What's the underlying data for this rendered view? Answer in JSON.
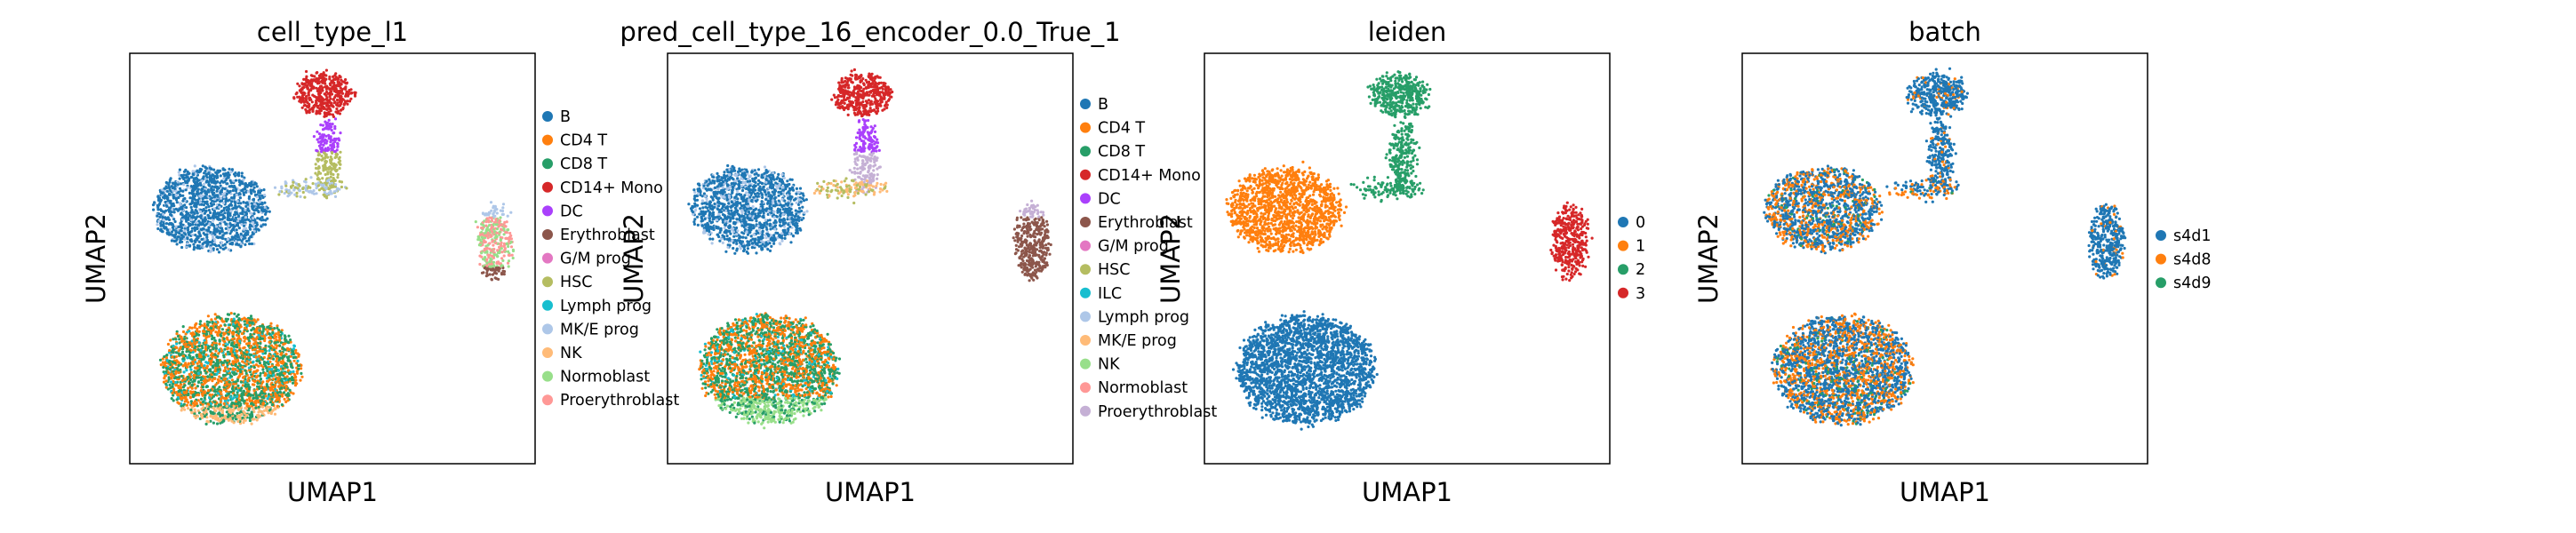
{
  "figure": {
    "background": "#ffffff"
  },
  "chart_data": [
    {
      "type": "scatter",
      "title": "cell_type_l1",
      "xlabel": "UMAP1",
      "ylabel": "UMAP2",
      "grid": false,
      "legend_placement": "right",
      "legend": [
        {
          "label": "B",
          "color": "#1f77b4"
        },
        {
          "label": "CD4 T",
          "color": "#ff7f0e"
        },
        {
          "label": "CD8 T",
          "color": "#279e68"
        },
        {
          "label": "CD14+ Mono",
          "color": "#d62728"
        },
        {
          "label": "DC",
          "color": "#aa40fc"
        },
        {
          "label": "Erythroblast",
          "color": "#8c564b"
        },
        {
          "label": "G/M prog",
          "color": "#e377c2"
        },
        {
          "label": "HSC",
          "color": "#b5bd61"
        },
        {
          "label": "Lymph prog",
          "color": "#17becf"
        },
        {
          "label": "MK/E prog",
          "color": "#aec7e8"
        },
        {
          "label": "NK",
          "color": "#ffbb78"
        },
        {
          "label": "Normoblast",
          "color": "#98df8a"
        },
        {
          "label": "Proerythroblast",
          "color": "#ff9896"
        }
      ]
    },
    {
      "type": "scatter",
      "title": "pred_cell_type_16_encoder_0.0_True_1",
      "xlabel": "UMAP1",
      "ylabel": "UMAP2",
      "grid": false,
      "legend_placement": "right",
      "legend": [
        {
          "label": "B",
          "color": "#1f77b4"
        },
        {
          "label": "CD4 T",
          "color": "#ff7f0e"
        },
        {
          "label": "CD8 T",
          "color": "#279e68"
        },
        {
          "label": "CD14+ Mono",
          "color": "#d62728"
        },
        {
          "label": "DC",
          "color": "#aa40fc"
        },
        {
          "label": "Erythroblast",
          "color": "#8c564b"
        },
        {
          "label": "G/M prog",
          "color": "#e377c2"
        },
        {
          "label": "HSC",
          "color": "#b5bd61"
        },
        {
          "label": "ILC",
          "color": "#17becf"
        },
        {
          "label": "Lymph prog",
          "color": "#aec7e8"
        },
        {
          "label": "MK/E prog",
          "color": "#ffbb78"
        },
        {
          "label": "NK",
          "color": "#98df8a"
        },
        {
          "label": "Normoblast",
          "color": "#ff9896"
        },
        {
          "label": "Proerythroblast",
          "color": "#c5b0d5"
        }
      ]
    },
    {
      "type": "scatter",
      "title": "leiden",
      "xlabel": "UMAP1",
      "ylabel": "UMAP2",
      "grid": false,
      "legend_placement": "right",
      "legend": [
        {
          "label": "0",
          "color": "#1f77b4"
        },
        {
          "label": "1",
          "color": "#ff7f0e"
        },
        {
          "label": "2",
          "color": "#279e68"
        },
        {
          "label": "3",
          "color": "#d62728"
        }
      ]
    },
    {
      "type": "scatter",
      "title": "batch",
      "xlabel": "UMAP1",
      "ylabel": "UMAP2",
      "grid": false,
      "legend_placement": "right",
      "legend": [
        {
          "label": "s4d1",
          "color": "#1f77b4"
        },
        {
          "label": "s4d8",
          "color": "#ff7f0e"
        },
        {
          "label": "s4d9",
          "color": "#279e68"
        }
      ]
    }
  ]
}
